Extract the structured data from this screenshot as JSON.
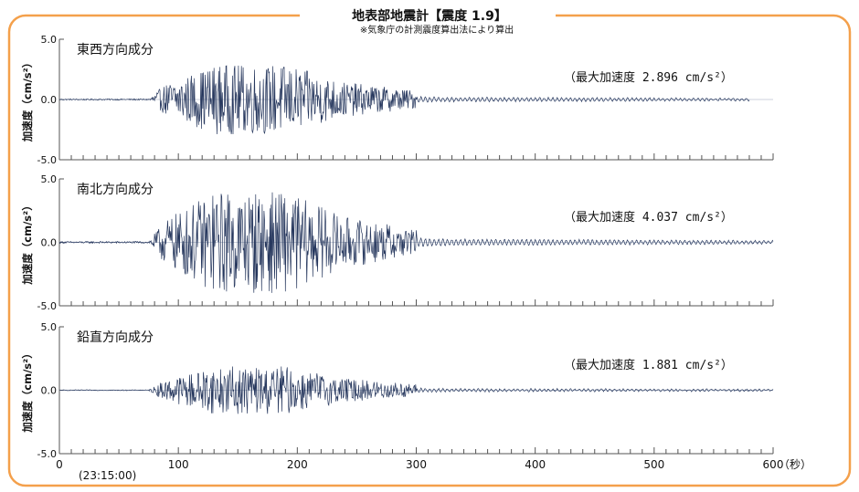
{
  "title": "地表部地震計【震度 1.9】",
  "subtitle": "※気象庁の計測震度算出法により算出",
  "chart_data": {
    "type": "line",
    "xlabel_unit": "（秒）",
    "x_start_label": "(23:15:00)",
    "xlim": [
      0,
      600
    ],
    "x_ticks": [
      "0",
      "100",
      "200",
      "300",
      "400",
      "500",
      "600"
    ],
    "ylim": [
      -5.0,
      5.0
    ],
    "y_ticks": [
      "5.0",
      "0.0",
      "-5.0"
    ],
    "ylabel": "加速度（cm/s²）",
    "panels": [
      {
        "name": "東西方向成分",
        "peak_label": "（最大加速度 2.896 cm/s²）",
        "peak": 2.896,
        "record_end": 580
      },
      {
        "name": "南北方向成分",
        "peak_label": "（最大加速度 4.037 cm/s²）",
        "peak": 4.037,
        "record_end": 600
      },
      {
        "name": "鉛直方向成分",
        "peak_label": "（最大加速度 1.881 cm/s²）",
        "peak": 1.881,
        "record_end": 600
      }
    ]
  },
  "colors": {
    "frame": "#f4a04b",
    "trace": "#27385e",
    "axis": "#555555"
  }
}
